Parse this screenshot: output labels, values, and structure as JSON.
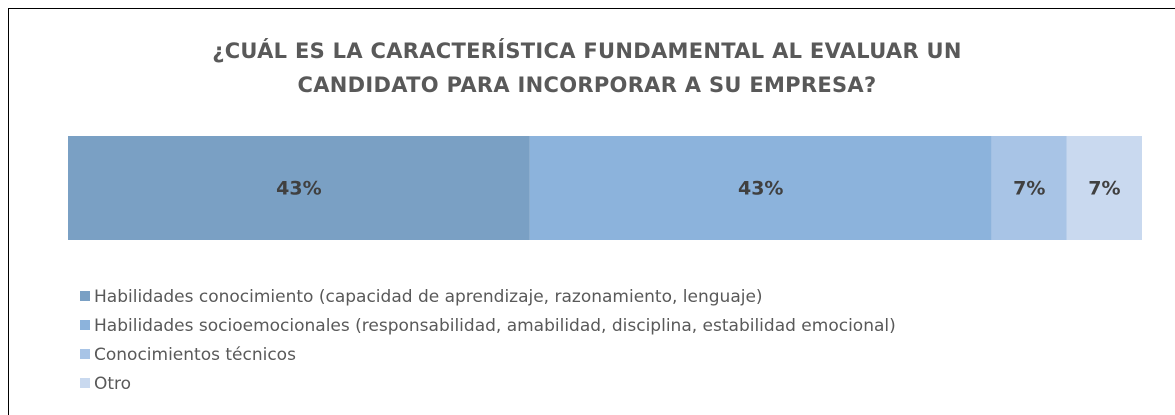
{
  "chart_data": {
    "type": "bar",
    "orientation": "horizontal",
    "stacked": true,
    "title": "¿CUÁL ES LA CARACTERÍSTICA FUNDAMENTAL AL EVALUAR UN CANDIDATO PARA INCORPORAR A SU EMPRESA?",
    "xlim": [
      0,
      100
    ],
    "legend": "bottom-left",
    "series": [
      {
        "name": "Habilidades conocimiento (capacidad de aprendizaje, razonamiento, lenguaje)",
        "color": "#7aa0c4",
        "values": [
          43
        ],
        "value_labels": [
          "43%"
        ]
      },
      {
        "name": "Habilidades socioemocionales (responsabilidad, amabilidad, disciplina, estabilidad emocional)",
        "color": "#8cb3dc",
        "values": [
          43
        ],
        "value_labels": [
          "43%"
        ]
      },
      {
        "name": "Conocimientos técnicos",
        "color": "#a8c4e6",
        "values": [
          7
        ],
        "value_labels": [
          "7%"
        ]
      },
      {
        "name": "Otro",
        "color": "#c9d9ef",
        "values": [
          7
        ],
        "value_labels": [
          "7%"
        ]
      }
    ]
  }
}
